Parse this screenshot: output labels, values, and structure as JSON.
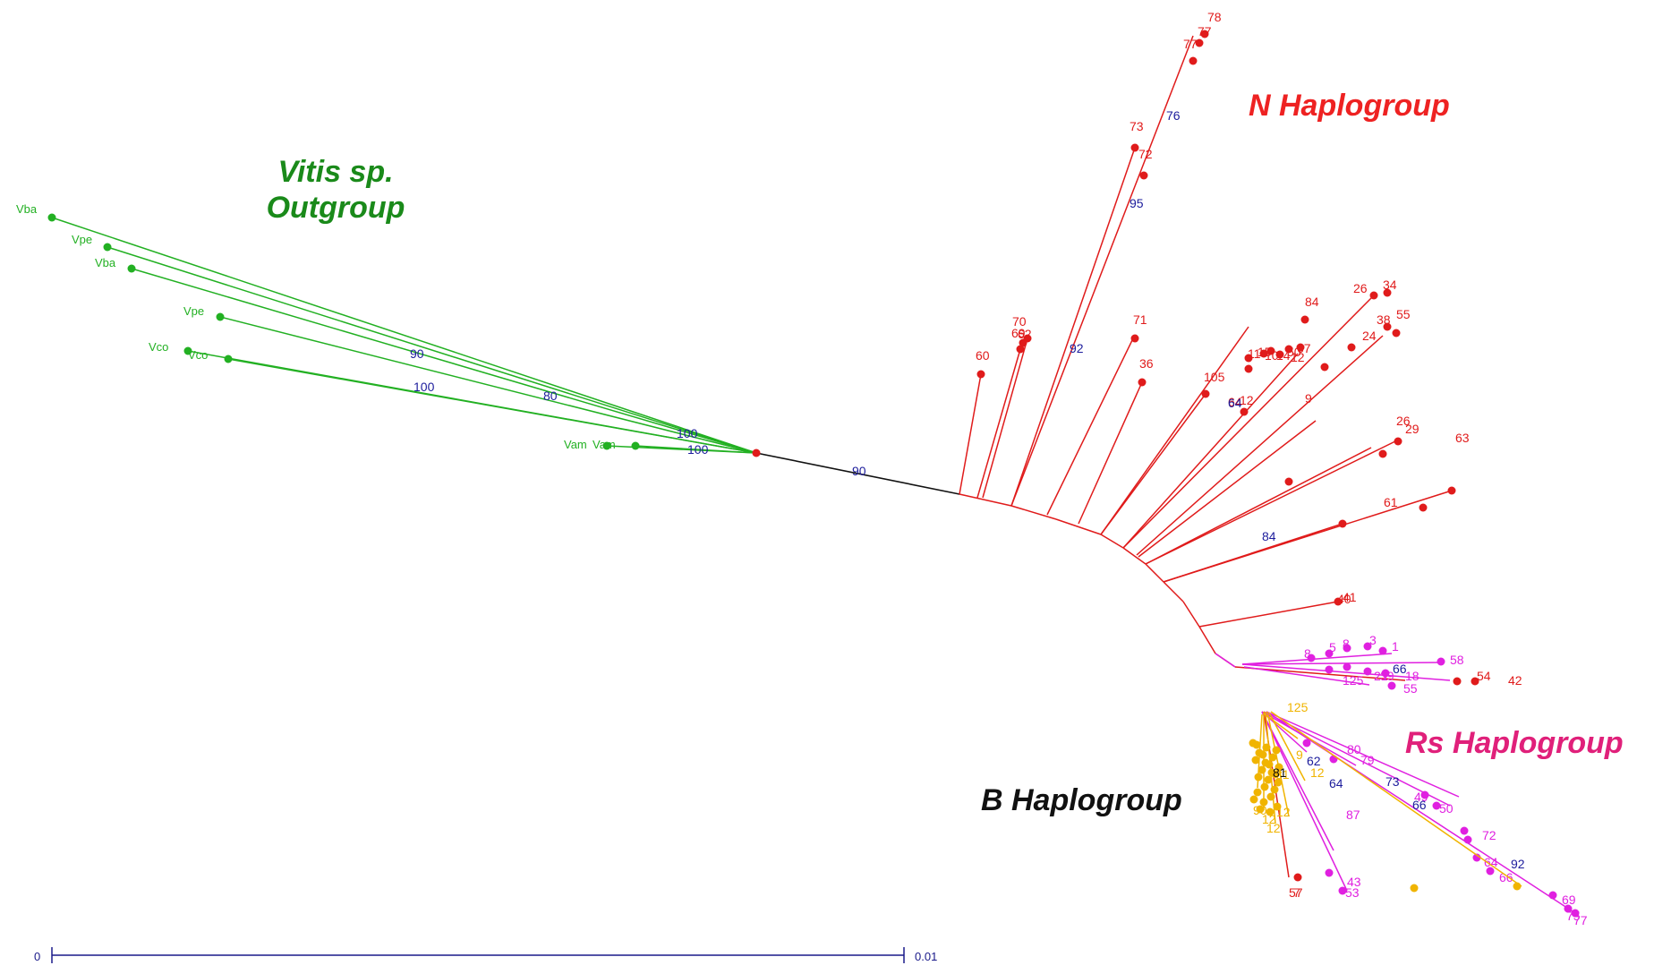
{
  "groups": {
    "vitis_line1": "Vitis sp.",
    "vitis_line2": "Outgroup",
    "n": "N Haplogroup",
    "rs": "Rs Haplogroup",
    "b": "B Haplogroup"
  },
  "colors": {
    "outgroup": "#22b022",
    "n": "#e01b1b",
    "rs": "#e020e0",
    "b": "#f0b400",
    "support": "#1c1c9c",
    "backbone": "#111111"
  },
  "outgroup_labels": [
    "Vba",
    "Vpe",
    "Vba",
    "Vpe",
    "Vco",
    "Vco",
    "Vam",
    "Vam"
  ],
  "outgroup_support": [
    "90",
    "100",
    "80",
    "100",
    "100"
  ],
  "backbone_support": "90",
  "n_labels": [
    "78",
    "77",
    "77",
    "73",
    "72",
    "60",
    "70",
    "69",
    "62",
    "71",
    "36",
    "105",
    "11",
    "15",
    "10",
    "14",
    "50",
    "67",
    "84",
    "64",
    "12",
    "12",
    "26",
    "34",
    "24",
    "38",
    "55",
    "26",
    "29",
    "9",
    "63",
    "61",
    "41",
    "40",
    "54",
    "42",
    "7"
  ],
  "n_support": [
    "76",
    "95",
    "92",
    "64",
    "84"
  ],
  "rs_labels": [
    "8",
    "5",
    "8",
    "3",
    "1",
    "58",
    "39",
    "21",
    "18",
    "125",
    "55",
    "80",
    "79",
    "43",
    "53",
    "49",
    "50",
    "72",
    "87",
    "64",
    "66",
    "69",
    "75",
    "77"
  ],
  "rs_support": [
    "66",
    "62",
    "64",
    "73",
    "66",
    "92"
  ],
  "b_labels": [
    "125",
    "9",
    "12",
    "12",
    "90",
    "12",
    "57",
    "81",
    "12"
  ],
  "b_support": [
    "81"
  ],
  "scale": {
    "min_label": "0",
    "max_label": "0.01"
  }
}
